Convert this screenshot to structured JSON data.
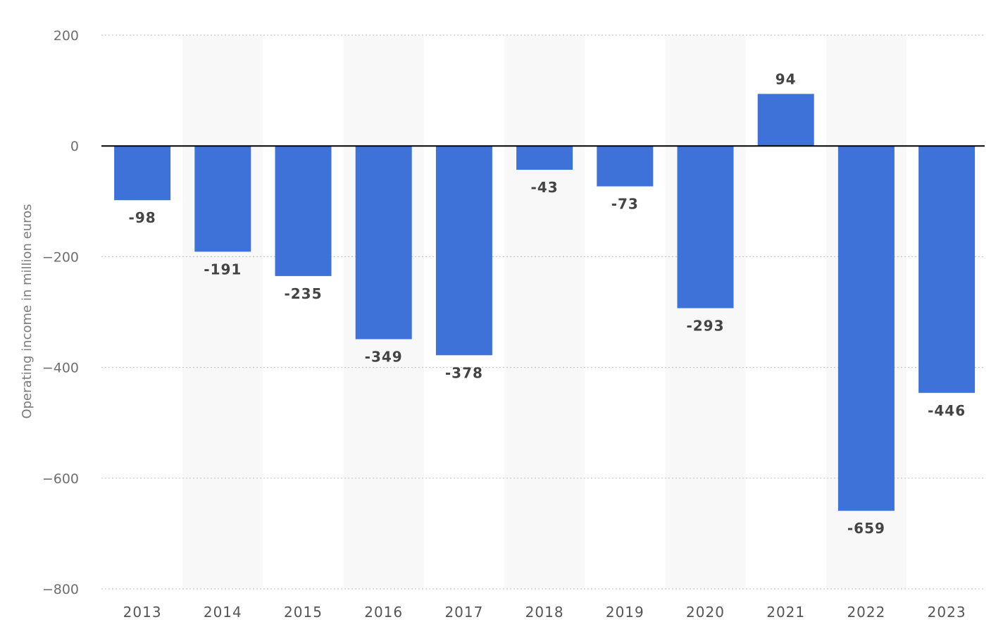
{
  "chart_data": {
    "type": "bar",
    "title": "",
    "xlabel": "",
    "ylabel": "Operating income in million euros",
    "categories": [
      "2013",
      "2014",
      "2015",
      "2016",
      "2017",
      "2018",
      "2019",
      "2020",
      "2021",
      "2022",
      "2023"
    ],
    "values": [
      -98,
      -191,
      -235,
      -349,
      -378,
      -43,
      -73,
      -293,
      94,
      -659,
      -446
    ],
    "data_labels": [
      "-98",
      "-191",
      "-235",
      "-349",
      "-378",
      "-43",
      "-73",
      "-293",
      "94",
      "-659",
      "-446"
    ],
    "ylim": [
      -800,
      200
    ],
    "yticks": [
      200,
      0,
      -200,
      -400,
      -600,
      -800
    ],
    "ytick_labels": [
      "200",
      "0",
      "−200",
      "−400",
      "−600",
      "−800"
    ],
    "grid": true,
    "legend": "none",
    "colors": {
      "bar": "#3f72d8",
      "alt_band": "#f8f8f8",
      "grid": "#c8c8c8",
      "zero_line": "#000000"
    }
  }
}
